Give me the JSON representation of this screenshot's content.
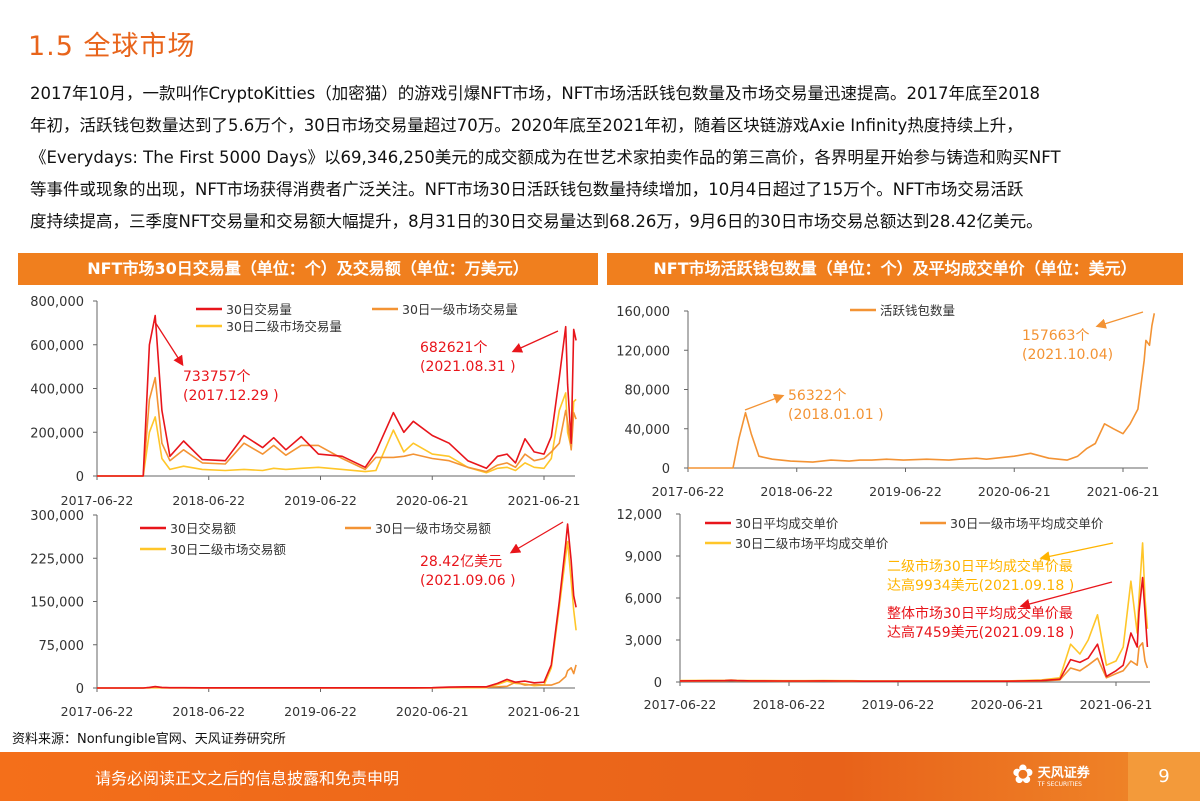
{
  "page": {
    "title": "1.5 全球市场",
    "paragraph_lines": [
      "2017年10月，一款叫作CryptoKitties（加密猫）的游戏引爆NFT市场，NFT市场活跃钱包数量及市场交易量迅速提高。2017年底至2018",
      "年初，活跃钱包数量达到了5.6万个，30日市场交易量超过70万。2020年底至2021年初，随着区块链游戏Axie  Infinity热度持续上升，",
      "《Everydays: The First 5000 Days》以69,346,250美元的成交额成为在世艺术家拍卖作品的第三高价，各界明星开始参与铸造和购买NFT",
      "等事件或现象的出现，NFT市场获得消费者广泛关注。NFT市场30日活跃钱包数量持续增加，10月4日超过了15万个。NFT市场交易活跃",
      "度持续提高，三季度NFT交易量和交易额大幅提升，8月31日的30日交易量达到68.26万，9月6日的30日市场交易总额达到28.42亿美元。"
    ],
    "panel_left_title": "NFT市场30日交易量（单位：个）及交易额（单位：万美元）",
    "panel_right_title": "NFT市场活跃钱包数量（单位：个）及平均成交单价（单位：美元）",
    "source": "资料来源：Nonfungible官网、天风证券研究所",
    "footer_disclaimer": "请务必阅读正文之后的信息披露和免责申明",
    "footer_logo": "天风证券",
    "footer_logo_sub": "TF SECURITIES",
    "page_number": "9",
    "colors": {
      "accent": "#F07F1E",
      "red": "#E8151B",
      "orange": "#F39334",
      "yellow": "#FFC629"
    }
  },
  "chart_data": [
    {
      "type": "line",
      "x_ticks": [
        "2017-06-22",
        "2018-06-22",
        "2019-06-22",
        "2020-06-21",
        "2021-06-21"
      ],
      "y_ticks": [
        "0",
        "200,000",
        "400,000",
        "600,000",
        "800,000"
      ],
      "ylim": [
        0,
        800000
      ],
      "x": [
        "2017-06-22",
        "2017-11-20",
        "2017-12-10",
        "2017-12-29",
        "2018-01-20",
        "2018-02-15",
        "2018-04-01",
        "2018-06-01",
        "2018-08-15",
        "2018-10-15",
        "2018-12-15",
        "2019-01-20",
        "2019-03-01",
        "2019-04-20",
        "2019-06-15",
        "2019-09-01",
        "2019-11-15",
        "2019-12-20",
        "2020-02-15",
        "2020-03-20",
        "2020-04-20",
        "2020-06-21",
        "2020-08-15",
        "2020-10-15",
        "2020-12-15",
        "2021-01-20",
        "2021-02-20",
        "2021-03-20",
        "2021-04-20",
        "2021-05-20",
        "2021-06-21",
        "2021-07-15",
        "2021-08-10",
        "2021-08-31",
        "2021-09-06",
        "2021-09-18",
        "2021-09-26",
        "2021-10-04"
      ],
      "series": [
        {
          "name": "30日交易量",
          "color": "#E8151B",
          "values": [
            0,
            0,
            600000,
            733757,
            300000,
            90000,
            160000,
            75000,
            70000,
            185000,
            130000,
            175000,
            120000,
            180000,
            100000,
            90000,
            40000,
            110000,
            290000,
            200000,
            250000,
            185000,
            150000,
            70000,
            35000,
            90000,
            100000,
            60000,
            170000,
            110000,
            100000,
            180000,
            450000,
            682621,
            420000,
            150000,
            670000,
            620000
          ]
        },
        {
          "name": "30日一级市场交易量",
          "color": "#F39334",
          "values": [
            0,
            0,
            350000,
            450000,
            150000,
            70000,
            120000,
            60000,
            55000,
            150000,
            100000,
            140000,
            95000,
            140000,
            140000,
            80000,
            30000,
            85000,
            85000,
            90000,
            100000,
            80000,
            70000,
            40000,
            20000,
            50000,
            60000,
            40000,
            100000,
            70000,
            80000,
            110000,
            150000,
            300000,
            250000,
            120000,
            290000,
            260000
          ]
        },
        {
          "name": "30日二级市场交易量",
          "color": "#FFC629",
          "values": [
            0,
            0,
            200000,
            270000,
            80000,
            30000,
            45000,
            30000,
            25000,
            30000,
            25000,
            35000,
            30000,
            35000,
            40000,
            30000,
            20000,
            25000,
            210000,
            110000,
            150000,
            100000,
            90000,
            40000,
            15000,
            35000,
            40000,
            25000,
            60000,
            40000,
            35000,
            80000,
            300000,
            380000,
            200000,
            130000,
            340000,
            350000
          ]
        }
      ],
      "annotations": [
        {
          "lines": [
            "733757个",
            "(2017.12.29 )"
          ],
          "color": "#E8151B"
        },
        {
          "lines": [
            "682621个",
            "(2021.08.31 )"
          ],
          "color": "#E8151B"
        }
      ]
    },
    {
      "type": "line",
      "x_ticks": [
        "2017-06-22",
        "2018-06-22",
        "2019-06-22",
        "2020-06-21",
        "2021-06-21"
      ],
      "y_ticks": [
        "0",
        "75,000",
        "150,000",
        "225,000",
        "300,000"
      ],
      "ylim": [
        0,
        300000
      ],
      "x": [
        "2017-06-22",
        "2017-11-20",
        "2017-12-10",
        "2017-12-29",
        "2018-01-20",
        "2018-02-15",
        "2018-04-01",
        "2018-06-01",
        "2018-08-15",
        "2018-10-15",
        "2018-12-15",
        "2019-01-20",
        "2019-03-01",
        "2019-04-20",
        "2019-06-15",
        "2019-09-01",
        "2019-11-15",
        "2019-12-20",
        "2020-02-15",
        "2020-03-20",
        "2020-04-20",
        "2020-06-21",
        "2020-08-15",
        "2020-10-15",
        "2020-12-15",
        "2021-01-20",
        "2021-02-20",
        "2021-03-20",
        "2021-04-20",
        "2021-05-20",
        "2021-06-21",
        "2021-07-15",
        "2021-08-10",
        "2021-08-31",
        "2021-09-06",
        "2021-09-18",
        "2021-09-26",
        "2021-10-04"
      ],
      "series": [
        {
          "name": "30日交易额",
          "color": "#E8151B",
          "values": [
            0,
            0,
            1000,
            2500,
            1000,
            500,
            500,
            300,
            300,
            300,
            300,
            300,
            300,
            300,
            300,
            300,
            300,
            300,
            300,
            300,
            300,
            500,
            1500,
            2000,
            2000,
            8000,
            15000,
            10000,
            12000,
            9000,
            10000,
            40000,
            150000,
            250000,
            284200,
            220000,
            160000,
            140000
          ]
        },
        {
          "name": "30日一级市场交易额",
          "color": "#F39334",
          "values": [
            0,
            0,
            800,
            2000,
            800,
            400,
            400,
            200,
            200,
            200,
            200,
            200,
            200,
            200,
            200,
            200,
            200,
            200,
            200,
            200,
            200,
            300,
            1000,
            1500,
            1500,
            2000,
            3000,
            10000,
            5000,
            6000,
            5000,
            5000,
            10000,
            20000,
            30000,
            35000,
            25000,
            40000
          ]
        },
        {
          "name": "30日二级市场交易额",
          "color": "#FFC629",
          "values": [
            0,
            0,
            200,
            500,
            200,
            100,
            100,
            100,
            100,
            100,
            100,
            100,
            100,
            100,
            100,
            100,
            100,
            100,
            100,
            100,
            100,
            200,
            500,
            500,
            500,
            6000,
            12000,
            8000,
            7000,
            4000,
            5000,
            35000,
            140000,
            230000,
            254000,
            185000,
            135000,
            100000
          ]
        }
      ],
      "annotations": [
        {
          "lines": [
            "28.42亿美元",
            "(2021.09.06 )"
          ],
          "color": "#E8151B"
        }
      ]
    },
    {
      "type": "line",
      "x_ticks": [
        "2017-06-22",
        "2018-06-22",
        "2019-06-22",
        "2020-06-21",
        "2021-06-21"
      ],
      "y_ticks": [
        "0",
        "40,000",
        "80,000",
        "120,000",
        "160,000"
      ],
      "ylim": [
        0,
        160000
      ],
      "x": [
        "2017-06-22",
        "2017-11-20",
        "2017-12-10",
        "2018-01-01",
        "2018-01-20",
        "2018-02-15",
        "2018-04-01",
        "2018-06-01",
        "2018-08-15",
        "2018-10-15",
        "2018-12-15",
        "2019-01-20",
        "2019-03-01",
        "2019-04-20",
        "2019-06-15",
        "2019-09-01",
        "2019-11-15",
        "2019-12-20",
        "2020-02-15",
        "2020-03-20",
        "2020-04-20",
        "2020-06-21",
        "2020-08-15",
        "2020-10-15",
        "2020-12-15",
        "2021-01-20",
        "2021-02-20",
        "2021-03-20",
        "2021-04-20",
        "2021-05-20",
        "2021-06-21",
        "2021-07-15",
        "2021-08-10",
        "2021-08-31",
        "2021-09-06",
        "2021-09-18",
        "2021-09-26",
        "2021-10-04"
      ],
      "series": [
        {
          "name": "活跃钱包数量",
          "color": "#F39334",
          "values": [
            0,
            0,
            30000,
            56322,
            35000,
            12000,
            9000,
            7000,
            6000,
            8000,
            7000,
            8000,
            8000,
            9000,
            8000,
            9000,
            8000,
            9000,
            10000,
            9000,
            10000,
            12000,
            15000,
            10000,
            8000,
            12000,
            20000,
            25000,
            45000,
            40000,
            35000,
            45000,
            60000,
            110000,
            130000,
            125000,
            145000,
            157663
          ]
        }
      ],
      "annotations": [
        {
          "lines": [
            "157663个",
            "(2021.10.04)"
          ],
          "color": "#F39334"
        },
        {
          "lines": [
            "56322个",
            "(2018.01.01 )"
          ],
          "color": "#F39334"
        }
      ]
    },
    {
      "type": "line",
      "x_ticks": [
        "2017-06-22",
        "2018-06-22",
        "2019-06-22",
        "2020-06-21",
        "2021-06-21"
      ],
      "y_ticks": [
        "0",
        "3,000",
        "6,000",
        "9,000",
        "12,000"
      ],
      "ylim": [
        0,
        12000
      ],
      "x": [
        "2017-06-22",
        "2017-11-20",
        "2017-12-10",
        "2017-12-29",
        "2018-01-20",
        "2018-02-15",
        "2018-04-01",
        "2018-06-01",
        "2018-08-15",
        "2018-10-15",
        "2018-12-15",
        "2019-01-20",
        "2019-03-01",
        "2019-04-20",
        "2019-06-15",
        "2019-09-01",
        "2019-11-15",
        "2019-12-20",
        "2020-02-15",
        "2020-03-20",
        "2020-04-20",
        "2020-06-21",
        "2020-08-15",
        "2020-10-15",
        "2020-12-15",
        "2021-01-20",
        "2021-02-20",
        "2021-03-20",
        "2021-04-20",
        "2021-05-20",
        "2021-06-21",
        "2021-07-15",
        "2021-08-10",
        "2021-08-31",
        "2021-09-06",
        "2021-09-18",
        "2021-09-26",
        "2021-10-04"
      ],
      "series": [
        {
          "name": "30日平均成交单价",
          "color": "#E8151B",
          "values": [
            80,
            100,
            120,
            100,
            90,
            80,
            80,
            70,
            70,
            80,
            70,
            70,
            60,
            60,
            60,
            60,
            60,
            60,
            60,
            60,
            60,
            60,
            80,
            100,
            200,
            1600,
            1400,
            1700,
            2700,
            400,
            800,
            1200,
            3500,
            2500,
            5000,
            7459,
            5000,
            2500
          ]
        },
        {
          "name": "30日一级市场平均成交单价",
          "color": "#F39334",
          "values": [
            60,
            80,
            100,
            80,
            70,
            60,
            60,
            50,
            50,
            60,
            50,
            50,
            50,
            50,
            50,
            50,
            50,
            50,
            50,
            50,
            50,
            50,
            60,
            80,
            150,
            1000,
            800,
            1200,
            1700,
            300,
            600,
            800,
            1500,
            1200,
            2500,
            2800,
            1500,
            1000
          ]
        },
        {
          "name": "30日二级市场平均成交单价",
          "color": "#FFC629",
          "values": [
            100,
            120,
            140,
            120,
            110,
            100,
            100,
            90,
            90,
            100,
            90,
            90,
            80,
            80,
            80,
            80,
            80,
            80,
            80,
            80,
            80,
            80,
            100,
            150,
            300,
            2700,
            2000,
            3000,
            4800,
            1200,
            1500,
            2500,
            7200,
            3500,
            6000,
            9934,
            6000,
            3800
          ]
        }
      ],
      "annotations": [
        {
          "lines": [
            "二级市场30日平均成交单价最",
            "达高9934美元(2021.09.18 )"
          ],
          "color": "#FFB400"
        },
        {
          "lines": [
            "整体市场30日平均成交单价最",
            "达高7459美元(2021.09.18 )"
          ],
          "color": "#E8151B"
        }
      ]
    }
  ]
}
